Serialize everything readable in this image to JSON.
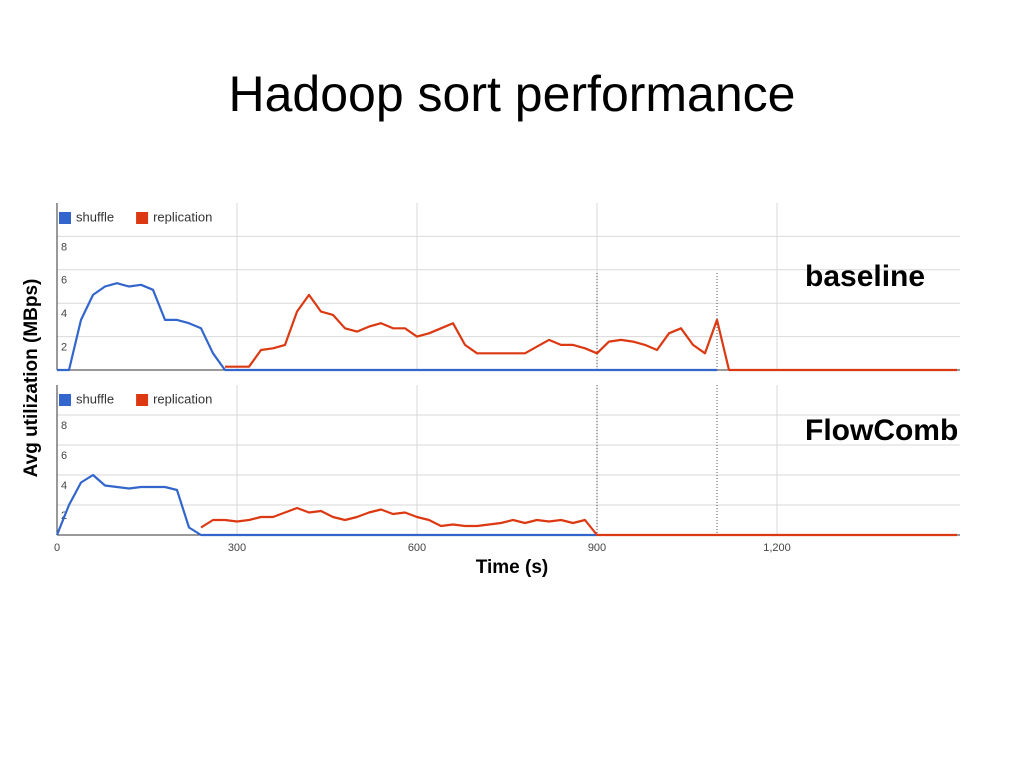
{
  "slide_title": "Hadoop sort performance",
  "y_label": "Avg utilization (MBps)",
  "x_label": "Time (s)",
  "chart_data": [
    {
      "type": "line",
      "annotation": "baseline",
      "x": [
        0,
        20,
        40,
        60,
        80,
        100,
        120,
        140,
        160,
        180,
        200,
        220,
        240,
        260,
        280,
        300,
        320,
        340,
        360,
        380,
        400,
        420,
        440,
        460,
        480,
        500,
        520,
        540,
        560,
        580,
        600,
        620,
        640,
        660,
        680,
        700,
        720,
        740,
        760,
        780,
        800,
        820,
        840,
        860,
        880,
        900,
        920,
        940,
        960,
        980,
        1000,
        1020,
        1040,
        1060,
        1080,
        1100,
        1120,
        1140,
        1160,
        1180,
        1200,
        1220,
        1240,
        1260,
        1280,
        1300,
        1320,
        1340,
        1360,
        1380,
        1400,
        1420,
        1440,
        1460,
        1480,
        1500
      ],
      "series": [
        {
          "name": "shuffle",
          "color": "#3366cc",
          "values": [
            0,
            0,
            3,
            4.5,
            5,
            5.2,
            5,
            5.1,
            4.8,
            3,
            3,
            2.8,
            2.5,
            1,
            0,
            0,
            0,
            0,
            0,
            0,
            0,
            0,
            0,
            0,
            0,
            0,
            0,
            0,
            0,
            0,
            0,
            0,
            0,
            0,
            0,
            0,
            0,
            0,
            0,
            0,
            0,
            0,
            0,
            0,
            0,
            0,
            0,
            0,
            0,
            0,
            0,
            0,
            0,
            0,
            0,
            0,
            null,
            null,
            null,
            null,
            null,
            null,
            null,
            null,
            null,
            null,
            null,
            null,
            null,
            null,
            null,
            null,
            null,
            null,
            null,
            null
          ]
        },
        {
          "name": "replication",
          "color": "#dc3912",
          "values": [
            null,
            null,
            null,
            null,
            null,
            null,
            null,
            null,
            null,
            null,
            null,
            null,
            null,
            null,
            0.2,
            0.2,
            0.2,
            1.2,
            1.3,
            1.5,
            3.5,
            4.5,
            3.5,
            3.3,
            2.5,
            2.3,
            2.6,
            2.8,
            2.5,
            2.5,
            2,
            2.2,
            2.5,
            2.8,
            1.5,
            1,
            1,
            1,
            1,
            1,
            1.4,
            1.8,
            1.5,
            1.5,
            1.3,
            1,
            1.7,
            1.8,
            1.7,
            1.5,
            1.2,
            2.2,
            2.5,
            1.5,
            1,
            3,
            0,
            0,
            0,
            0,
            0,
            0,
            0,
            0,
            0,
            0,
            0,
            0,
            0,
            0,
            0,
            0,
            0,
            0,
            0,
            0
          ]
        }
      ],
      "xlim": [
        0,
        1505
      ],
      "xticks": [
        0,
        300,
        600,
        900,
        1200
      ],
      "ylim": [
        0,
        10
      ],
      "yticks": [
        2,
        4,
        6,
        8
      ],
      "grid": true,
      "vlines": [
        900,
        1100
      ],
      "legend": "top-left"
    },
    {
      "type": "line",
      "annotation": "FlowComb",
      "x": [
        0,
        20,
        40,
        60,
        80,
        100,
        120,
        140,
        160,
        180,
        200,
        220,
        240,
        260,
        280,
        300,
        320,
        340,
        360,
        380,
        400,
        420,
        440,
        460,
        480,
        500,
        520,
        540,
        560,
        580,
        600,
        620,
        640,
        660,
        680,
        700,
        720,
        740,
        760,
        780,
        800,
        820,
        840,
        860,
        880,
        900,
        920,
        940,
        960,
        980,
        1000,
        1020,
        1040,
        1060,
        1080,
        1100,
        1120,
        1140,
        1160,
        1180,
        1200,
        1220,
        1240,
        1260,
        1280,
        1300,
        1320,
        1340,
        1360,
        1380,
        1400,
        1420,
        1440,
        1460,
        1480,
        1500
      ],
      "series": [
        {
          "name": "shuffle",
          "color": "#3366cc",
          "values": [
            0,
            2,
            3.5,
            4,
            3.3,
            3.2,
            3.1,
            3.2,
            3.2,
            3.2,
            3,
            0.5,
            0,
            0,
            0,
            0,
            0,
            0,
            0,
            0,
            0,
            0,
            0,
            0,
            0,
            0,
            0,
            0,
            0,
            0,
            0,
            0,
            0,
            0,
            0,
            0,
            0,
            0,
            0,
            0,
            0,
            0,
            0,
            0,
            0,
            0,
            null,
            null,
            null,
            null,
            null,
            null,
            null,
            null,
            null,
            null,
            null,
            null,
            null,
            null,
            null,
            null,
            null,
            null,
            null,
            null,
            null,
            null,
            null,
            null,
            null,
            null,
            null,
            null,
            null,
            null
          ]
        },
        {
          "name": "replication",
          "color": "#dc3912",
          "values": [
            null,
            null,
            null,
            null,
            null,
            null,
            null,
            null,
            null,
            null,
            null,
            null,
            0.5,
            1,
            1,
            0.9,
            1,
            1.2,
            1.2,
            1.5,
            1.8,
            1.5,
            1.6,
            1.2,
            1,
            1.2,
            1.5,
            1.7,
            1.4,
            1.5,
            1.2,
            1,
            0.6,
            0.7,
            0.6,
            0.6,
            0.7,
            0.8,
            1,
            0.8,
            1,
            0.9,
            1,
            0.8,
            1,
            0,
            0,
            0,
            0,
            0,
            0,
            0,
            0,
            0,
            0,
            0,
            0,
            0,
            0,
            0,
            0,
            0,
            0,
            0,
            0,
            0,
            0,
            0,
            0,
            0,
            0,
            0,
            0,
            0,
            0,
            0
          ]
        }
      ],
      "xlim": [
        0,
        1505
      ],
      "xticks": [
        0,
        300,
        600,
        900,
        {
          "value": 1200,
          "label": "1,200"
        }
      ],
      "ylim": [
        0,
        10
      ],
      "yticks": [
        2,
        4,
        6,
        8
      ],
      "grid": true,
      "vlines": [
        900,
        1100
      ],
      "legend": "top-left"
    }
  ]
}
